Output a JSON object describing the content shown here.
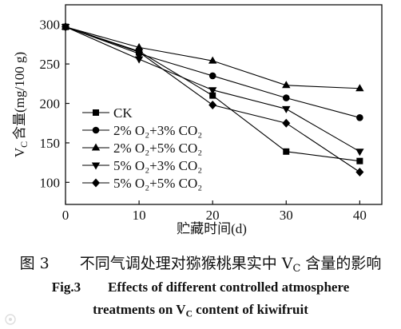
{
  "chart_data": {
    "type": "line",
    "xlabel": "贮藏时间(d)",
    "ylabel": {
      "v": "V",
      "sub": "C",
      "text": "含量(mg/100 g)"
    },
    "x": [
      0,
      10,
      20,
      30,
      40
    ],
    "xlim": [
      0,
      43
    ],
    "ylim": [
      72,
      325
    ],
    "xticks": [
      0,
      10,
      20,
      30,
      40
    ],
    "yticks": [
      100,
      150,
      200,
      250,
      300
    ],
    "grid": false,
    "legend_position": "lower-left",
    "series": [
      {
        "name": "CK",
        "marker": "square",
        "color": "#000000",
        "values": [
          297,
          266,
          210,
          139,
          127
        ]
      },
      {
        "name": "2% O₂+3% CO₂",
        "marker": "circle",
        "color": "#000000",
        "values": [
          297,
          263,
          235,
          207,
          182
        ]
      },
      {
        "name": "2% O₂+5% CO₂",
        "marker": "triangle-up",
        "color": "#000000",
        "values": [
          297,
          271,
          254,
          223,
          219
        ]
      },
      {
        "name": "5% O₂+3% CO₂",
        "marker": "triangle-down",
        "color": "#000000",
        "values": [
          297,
          256,
          217,
          193,
          139
        ]
      },
      {
        "name": "5% O₂+5% CO₂",
        "marker": "diamond",
        "color": "#000000",
        "values": [
          297,
          265,
          198,
          175,
          113
        ]
      }
    ]
  },
  "caption": {
    "cn": {
      "number": "图 3",
      "before": "不同气调处理对猕猴桃果实中 V",
      "sub": "C",
      "after": " 含量的影响"
    },
    "en": {
      "number": "Fig.3",
      "line1": "Effects of different controlled atmosphere",
      "line2_before": "treatments on V",
      "line2_sub": "C",
      "line2_after": " content of kiwifruit"
    }
  }
}
